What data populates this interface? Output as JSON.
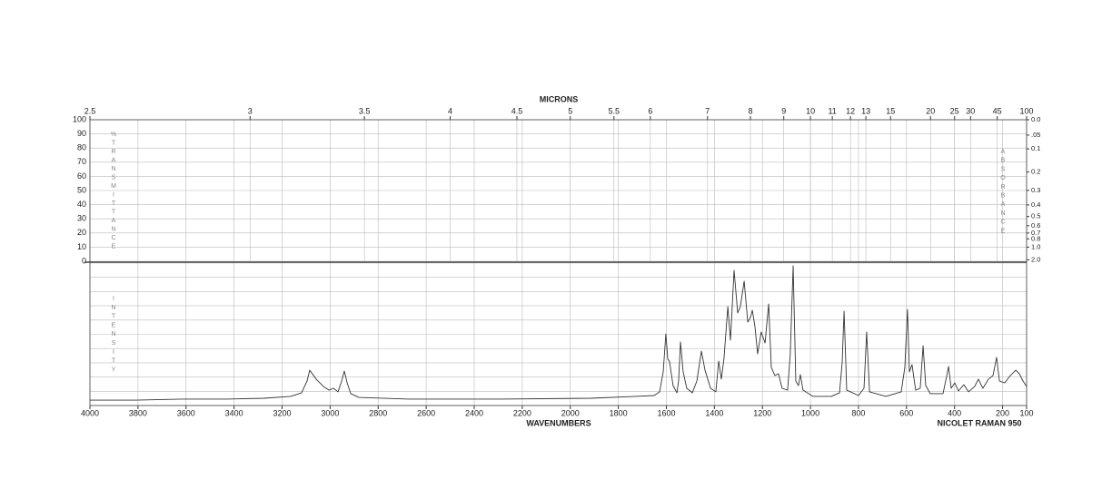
{
  "chart_data": {
    "type": "line",
    "top_axis_label": "MICRONS",
    "x_label": "WAVENUMBERS",
    "instrument": "NICOLET RAMAN 950",
    "y_label": "%TRANSMITTANCE",
    "y2_label": "ABSORBANCE",
    "intensity_label": "INTENSITY",
    "color": "#333333",
    "grid": true,
    "xlim": [
      4000,
      100
    ],
    "xticks": [
      4000,
      3800,
      3600,
      3400,
      3200,
      3000,
      2800,
      2600,
      2400,
      2200,
      2000,
      1800,
      1600,
      1400,
      1200,
      1000,
      800,
      600,
      400,
      200,
      100
    ],
    "micron_ticks": [
      2.5,
      3,
      3.5,
      4,
      4.5,
      5,
      5.5,
      6,
      7,
      8,
      9,
      10,
      11,
      12,
      13,
      15,
      20,
      25,
      30,
      45,
      100
    ],
    "ylim": [
      0,
      100
    ],
    "yticks": [
      100,
      90,
      80,
      70,
      60,
      50,
      40,
      30,
      20,
      10,
      0
    ],
    "y2ticks": [
      {
        "value": 0,
        "label": "0.0"
      },
      {
        "value": 0.05,
        "label": ".05"
      },
      0.1,
      0.2,
      0.3,
      0.4,
      0.5,
      0.6,
      0.7,
      0.8,
      {
        "value": 1,
        "label": "1.0"
      },
      {
        "value": 2,
        "label": "2.0"
      }
    ],
    "x": [
      4000,
      3807,
      3618,
      3429,
      3277,
      3164,
      3119,
      3096,
      3085,
      3058,
      3028,
      3005,
      2986,
      2967,
      2952,
      2941,
      2929,
      2914,
      2880,
      2672,
      2294,
      1916,
      1727,
      1651,
      1628,
      1613,
      1602,
      1594,
      1587,
      1572,
      1556,
      1549,
      1541,
      1530,
      1515,
      1492,
      1473,
      1454,
      1439,
      1416,
      1394,
      1382,
      1371,
      1360,
      1344,
      1333,
      1318,
      1303,
      1292,
      1276,
      1261,
      1250,
      1242,
      1231,
      1220,
      1205,
      1189,
      1174,
      1163,
      1148,
      1133,
      1118,
      1095,
      1084,
      1072,
      1061,
      1050,
      1042,
      1031,
      989,
      913,
      879,
      868,
      860,
      849,
      800,
      777,
      766,
      754,
      686,
      622,
      607,
      596,
      588,
      577,
      562,
      543,
      531,
      520,
      501,
      448,
      433,
      425,
      414,
      399,
      384,
      361,
      342,
      316,
      301,
      282,
      259,
      240,
      225,
      213,
      191,
      168,
      145,
      130,
      115,
      100
    ],
    "values": [
      3.8,
      3.8,
      4.5,
      4.5,
      5.1,
      6.4,
      8.9,
      17.2,
      24.8,
      18.5,
      13.4,
      10.8,
      12.1,
      9.6,
      17.2,
      24.2,
      15.9,
      8.3,
      5.7,
      4.5,
      4.5,
      5.1,
      6.4,
      7.0,
      9.6,
      23.6,
      50.3,
      32.5,
      31.2,
      14.0,
      8.9,
      17.2,
      44.6,
      23.6,
      12.1,
      8.9,
      17.2,
      38.2,
      24.8,
      12.1,
      9.6,
      31.2,
      18.5,
      33.1,
      69.4,
      45.9,
      94.9,
      65.0,
      69.4,
      87.3,
      58.6,
      61.8,
      66.9,
      55.4,
      36.3,
      51.6,
      43.9,
      71.3,
      26.8,
      21.0,
      22.3,
      12.1,
      10.8,
      36.3,
      98.1,
      17.2,
      14.0,
      21.7,
      10.8,
      6.4,
      6.4,
      8.9,
      29.9,
      66.2,
      10.8,
      7.0,
      12.1,
      51.6,
      9.6,
      6.4,
      9.6,
      26.8,
      67.5,
      23.6,
      28.7,
      10.8,
      12.1,
      42.0,
      14.0,
      8.3,
      8.3,
      20.4,
      27.4,
      12.1,
      15.9,
      10.2,
      14.6,
      9.6,
      13.4,
      18.5,
      12.1,
      18.5,
      21.0,
      33.8,
      17.2,
      15.9,
      21.0,
      24.8,
      22.3,
      17.2,
      13.4
    ]
  }
}
